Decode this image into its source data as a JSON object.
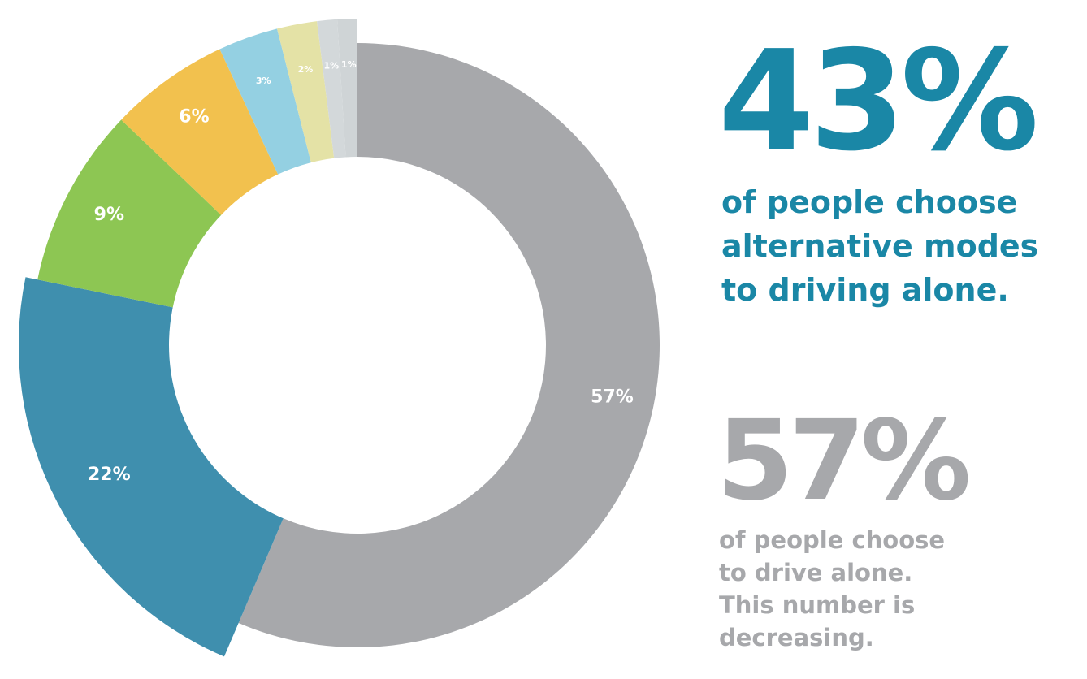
{
  "chart_data": {
    "type": "pie",
    "categories": [
      "Drive alone",
      "",
      "",
      "",
      "",
      "",
      "",
      ""
    ],
    "values": [
      57,
      22,
      9,
      6,
      3,
      2,
      1,
      1
    ],
    "labels": [
      "57%",
      "22%",
      "9%",
      "6%",
      "3%",
      "2%",
      "1%",
      "1%"
    ],
    "colors": [
      "#a7a8ab",
      "#3f8fae",
      "#8dc653",
      "#f2c14e",
      "#94d0e2",
      "#e4e2a6",
      "#d3d8da",
      "#cfd4d6"
    ],
    "label_colors": [
      "#ffffff",
      "#ffffff",
      "#ffffff",
      "#ffffff",
      "#ffffff",
      "#2f7f9c",
      "#2f7f9c",
      "#2f7f9c"
    ]
  },
  "stats": {
    "alternative": {
      "value": "43%",
      "lines": [
        "of people choose",
        "alternative modes",
        "to driving alone."
      ],
      "color": "#1a87a6"
    },
    "drive_alone": {
      "value": "57%",
      "lines": [
        "of people choose",
        "to drive alone.",
        "This number is",
        "decreasing."
      ],
      "color": "#a7a8ab"
    }
  }
}
